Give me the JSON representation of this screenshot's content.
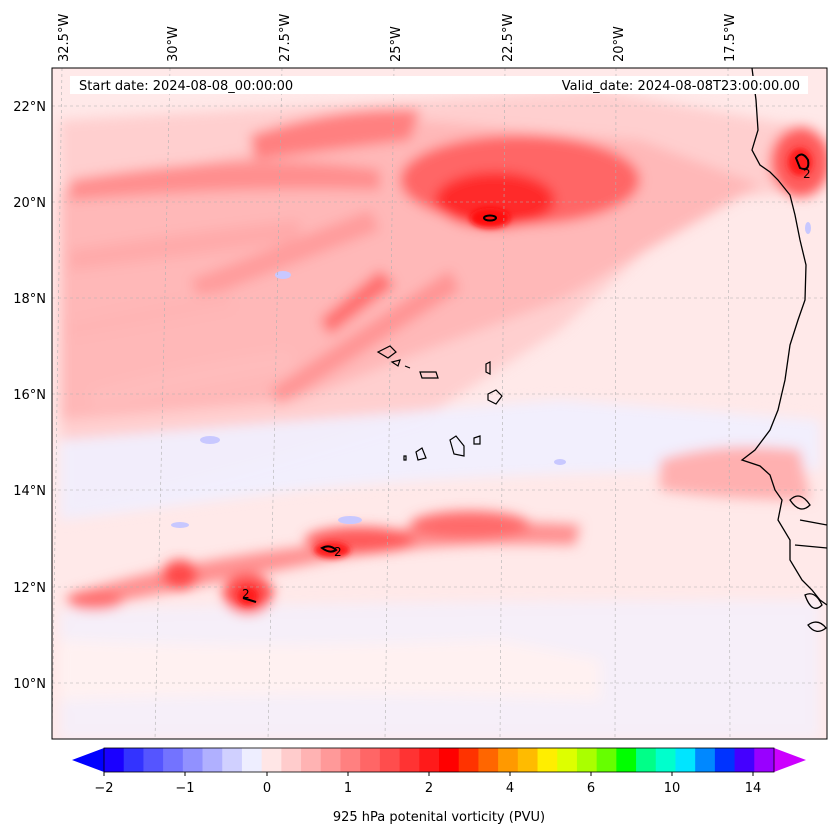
{
  "map": {
    "start_date": "Start date: 2024-08-08_00:00:00",
    "valid_date": "Valid_date: 2024-08-08T23:00:00.00",
    "lon_labels": [
      "32.5°W",
      "30°W",
      "27.5°W",
      "25°W",
      "22.5°W",
      "20°W",
      "17.5°W"
    ],
    "lat_labels": [
      "22°N",
      "20°N",
      "18°N",
      "16°N",
      "14°N",
      "12°N",
      "10°N"
    ],
    "contour_labels": [
      "2",
      "2",
      "2"
    ]
  },
  "colorbar": {
    "label": "925 hPa potenital vorticity (PVU)",
    "tick_labels": [
      "−2",
      "−1",
      "0",
      "1",
      "2",
      "4",
      "6",
      "10",
      "14"
    ],
    "colors": [
      "#1a00ff",
      "#3333ff",
      "#5555ff",
      "#7373ff",
      "#9191ff",
      "#b0b0ff",
      "#d0d0ff",
      "#eeeeff",
      "#ffe6e6",
      "#ffcccc",
      "#ffb3b3",
      "#ff9999",
      "#ff8080",
      "#ff6666",
      "#ff4d4d",
      "#ff3333",
      "#ff1a1a",
      "#ff0000",
      "#ff3300",
      "#ff6600",
      "#ff9900",
      "#ffbb00",
      "#ffee00",
      "#ddff00",
      "#aaff00",
      "#66ff00",
      "#00ff00",
      "#00ff88",
      "#00ffcc",
      "#00e5ff",
      "#0088ff",
      "#0033ff",
      "#4400ff",
      "#9900ff"
    ],
    "under_color": "#0000ff",
    "over_color": "#cc00ff"
  },
  "chart_data": {
    "type": "heatmap",
    "variable": "925 hPa potenital vorticity (PVU)",
    "lon_range": [
      -33,
      -15.7
    ],
    "lat_range": [
      8.9,
      22.8
    ],
    "colorbar_ticks": [
      -2,
      -1,
      0,
      1,
      2,
      4,
      6,
      10,
      14
    ],
    "contour_level": 2,
    "features": [
      {
        "lon": -22.4,
        "lat": 19.7,
        "pv": 2.5
      },
      {
        "lon": -16.0,
        "lat": 20.8,
        "pv": 2.5
      },
      {
        "lon": -26.3,
        "lat": 12.7,
        "pv": 2.2
      },
      {
        "lon": -28.4,
        "lat": 11.8,
        "pv": 2.2
      },
      {
        "lon": -29.7,
        "lat": 12.2,
        "pv": 1.5
      }
    ]
  }
}
